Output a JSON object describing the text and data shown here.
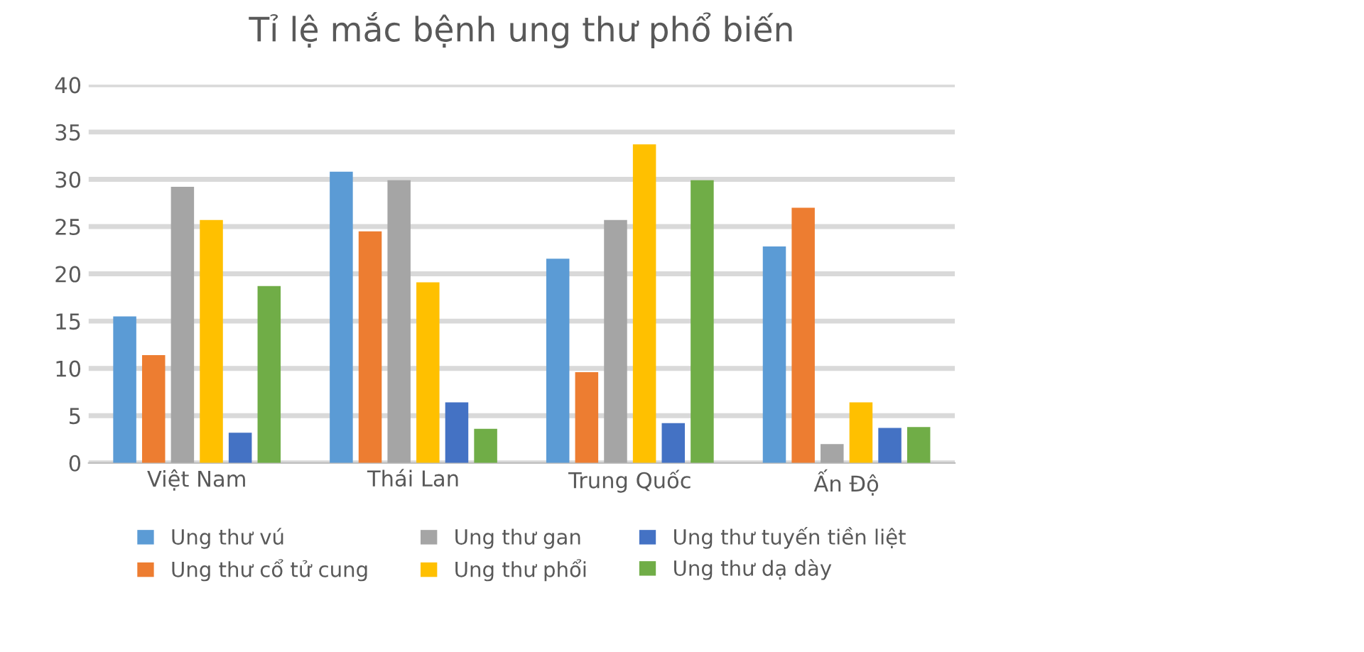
{
  "chart_data": {
    "type": "bar",
    "title": "Tỉ lệ mắc bệnh ung thư phổ biến",
    "categories": [
      "Việt Nam",
      "Thái Lan",
      "Trung Quốc",
      "Ấn Độ"
    ],
    "series": [
      {
        "name": "Ung thư vú",
        "color": "#5b9bd5",
        "values": [
          15.5,
          30.8,
          21.6,
          22.9
        ]
      },
      {
        "name": "Ung thư cổ tử cung",
        "color": "#ed7d31",
        "values": [
          11.4,
          24.5,
          9.6,
          27.0
        ]
      },
      {
        "name": "Ung thư gan",
        "color": "#a5a5a5",
        "values": [
          29.2,
          29.9,
          25.7,
          2.0
        ]
      },
      {
        "name": "Ung thư phổi",
        "color": "#ffc000",
        "values": [
          25.7,
          19.1,
          33.7,
          6.4
        ]
      },
      {
        "name": "Ung thư tuyến tiền liệt",
        "color": "#4472c4",
        "values": [
          3.2,
          6.4,
          4.2,
          3.7
        ]
      },
      {
        "name": "Ung thư dạ dày",
        "color": "#70ad47",
        "values": [
          18.7,
          3.6,
          29.9,
          3.8
        ]
      }
    ],
    "ylim": [
      0,
      40
    ],
    "yticks": [
      0,
      5,
      10,
      15,
      20,
      25,
      30,
      35,
      40
    ],
    "grid": "y",
    "legend": "bottom"
  }
}
